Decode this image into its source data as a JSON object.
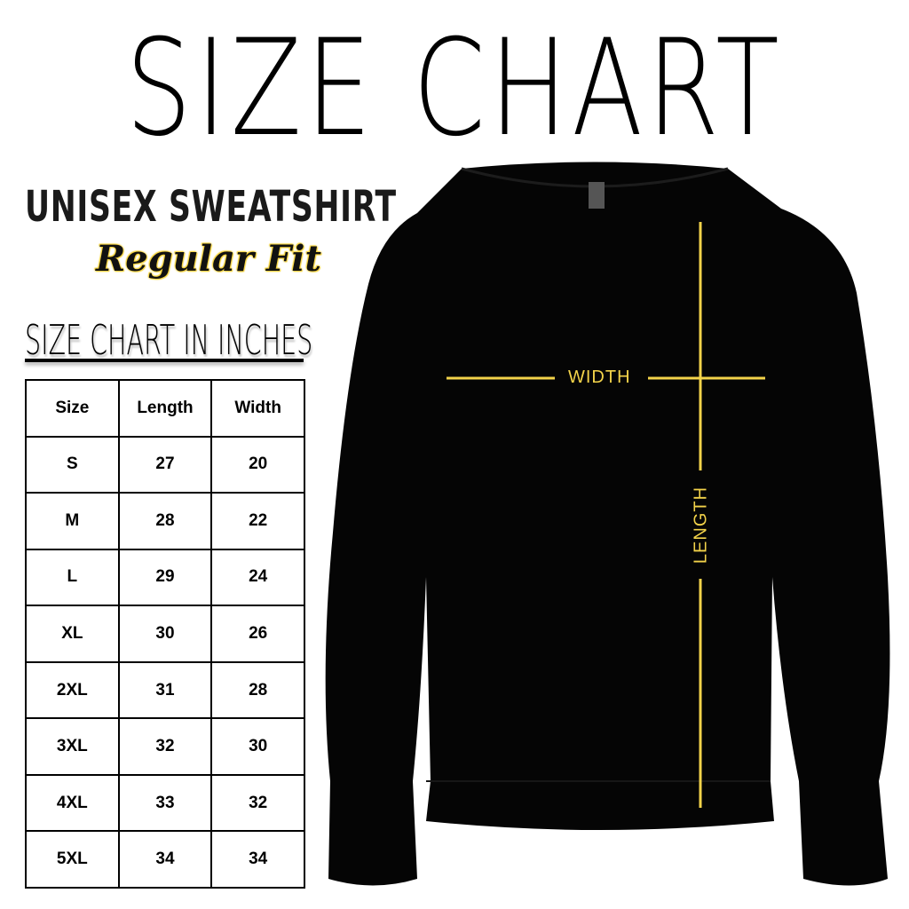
{
  "title": "SIZE CHART",
  "subtitle": "UNISEX SWEATSHIRT",
  "fit": "Regular Fit",
  "table_title": "SIZE CHART IN INCHES",
  "table": {
    "headers": [
      "Size",
      "Length",
      "Width"
    ],
    "rows": [
      [
        "S",
        "27",
        "20"
      ],
      [
        "M",
        "28",
        "22"
      ],
      [
        "L",
        "29",
        "24"
      ],
      [
        "XL",
        "30",
        "26"
      ],
      [
        "2XL",
        "31",
        "28"
      ],
      [
        "3XL",
        "32",
        "30"
      ],
      [
        "4XL",
        "33",
        "32"
      ],
      [
        "5XL",
        "34",
        "34"
      ]
    ]
  },
  "diagram": {
    "width_label": "WIDTH",
    "length_label": "LENGTH",
    "line_color": "#f3d34a",
    "garment_color": "#000000"
  }
}
